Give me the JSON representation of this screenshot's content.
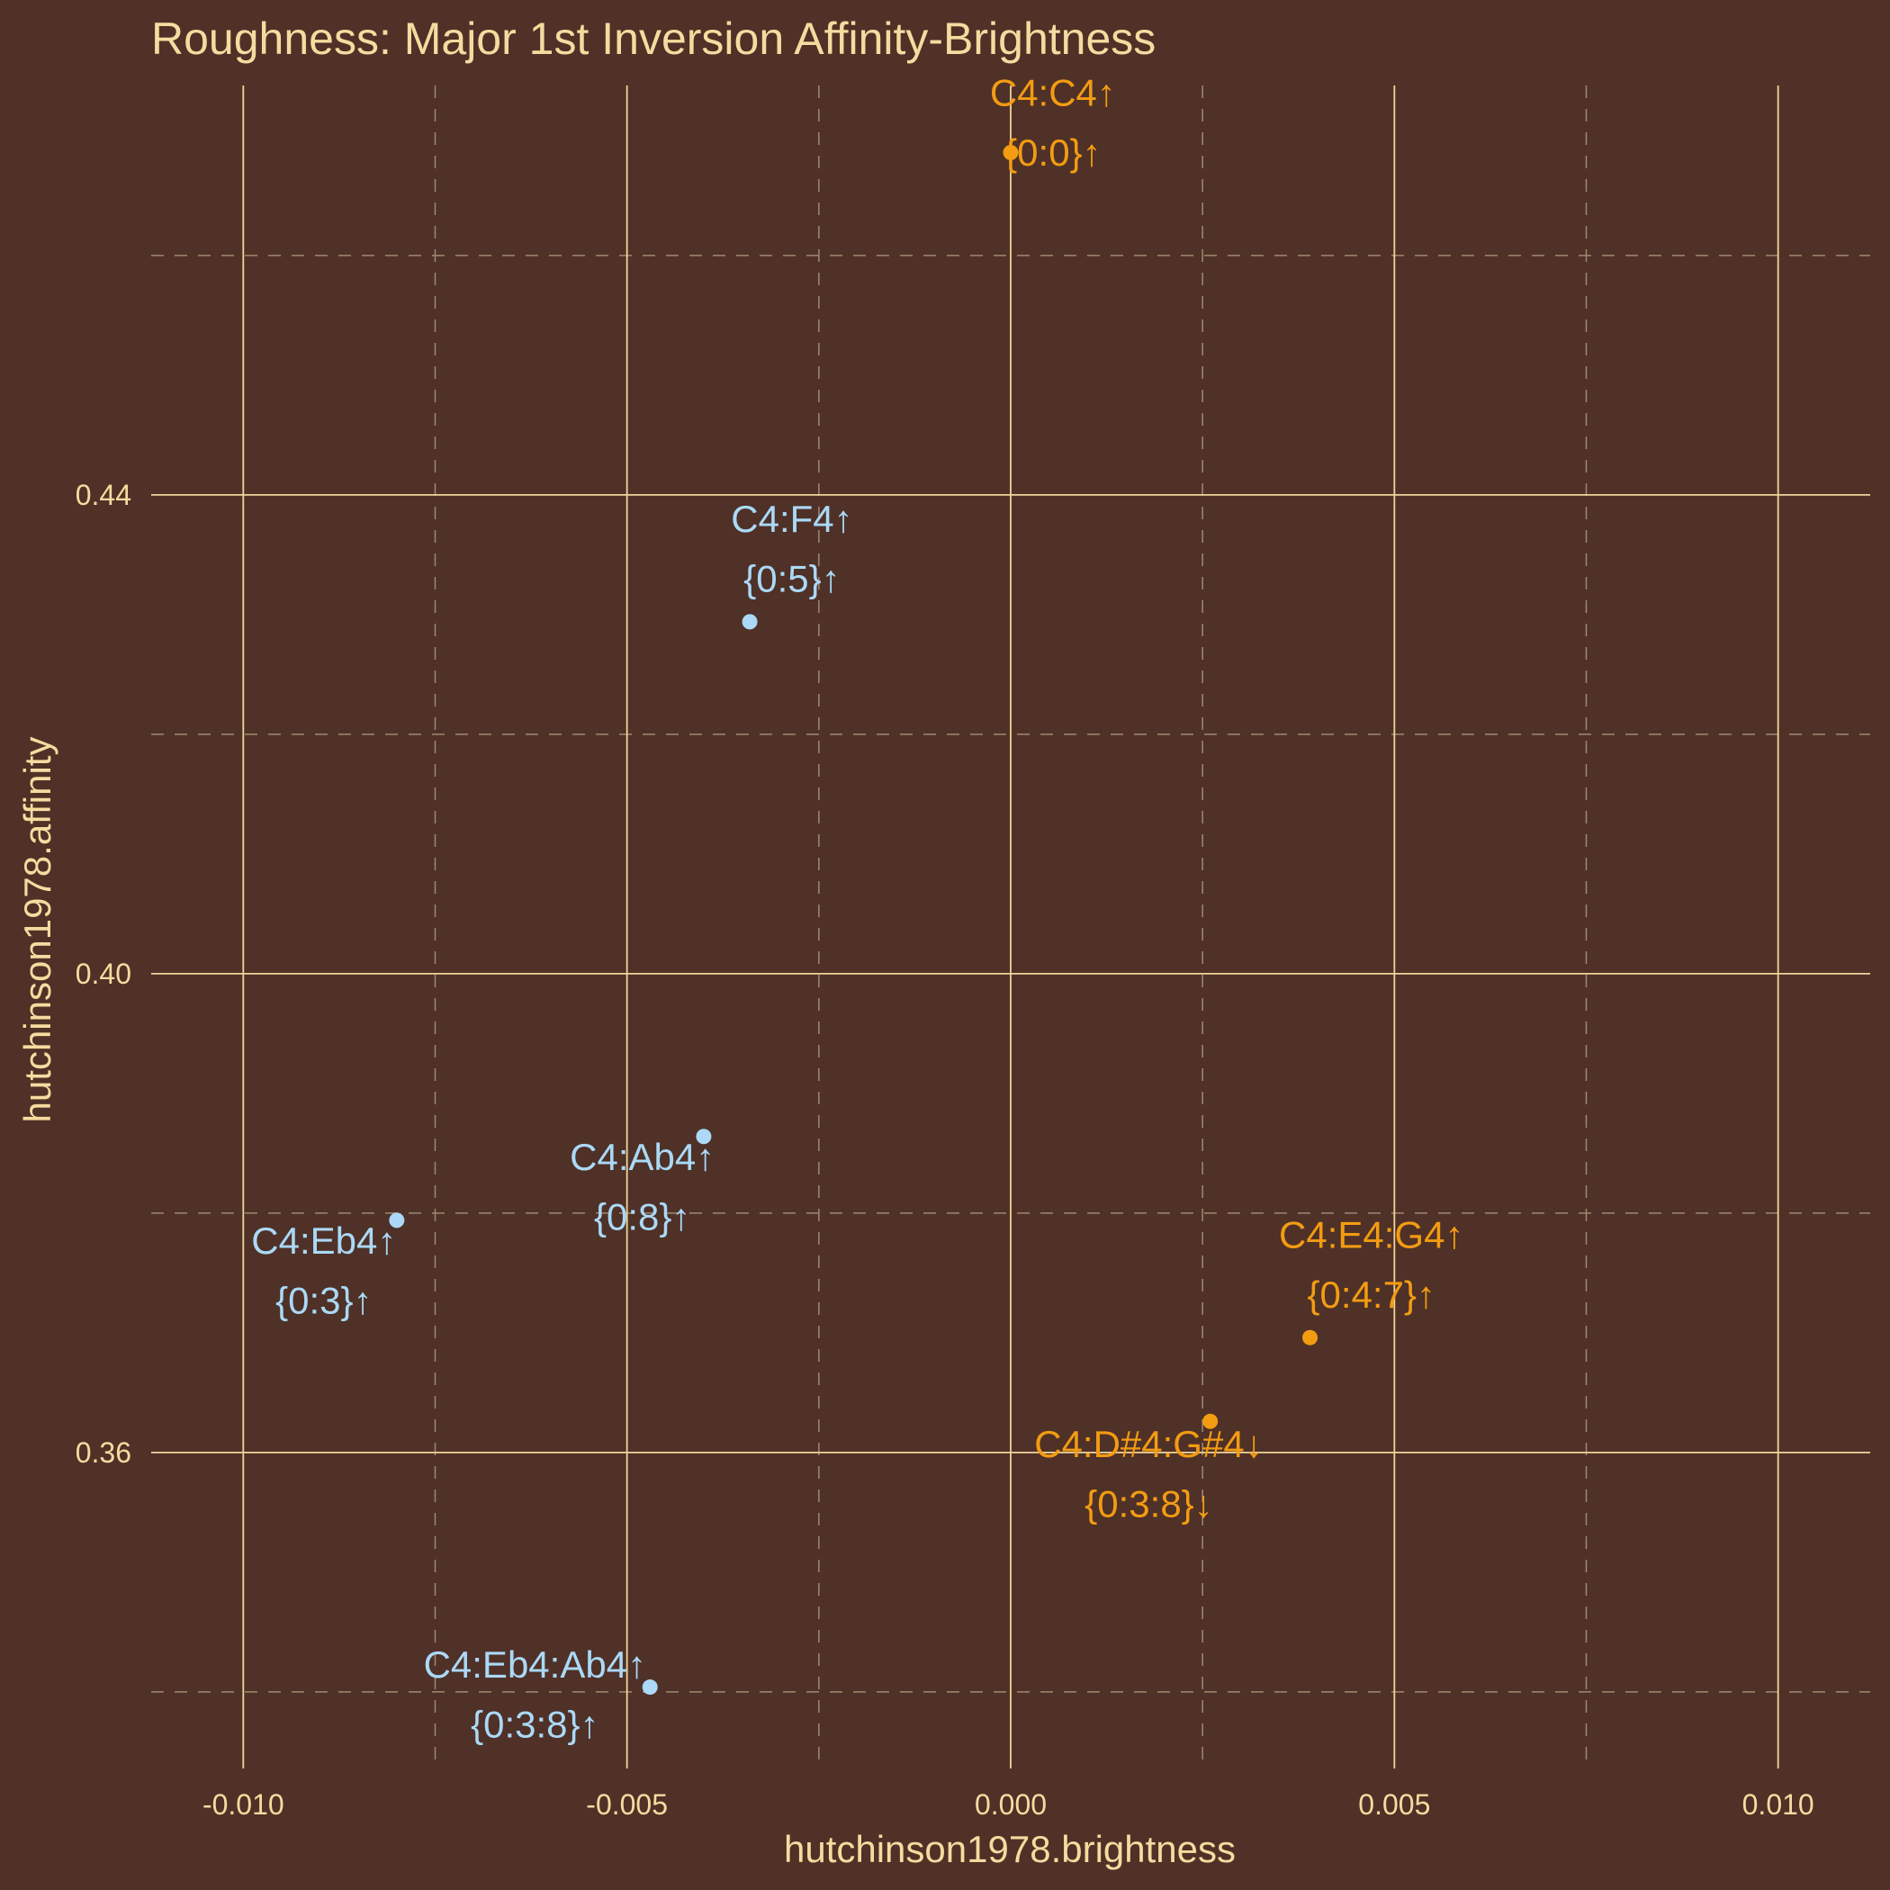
{
  "chart_data": {
    "type": "scatter",
    "title": "Roughness: Major 1st Inversion Affinity-Brightness",
    "xlabel": "hutchinson1978.brightness",
    "ylabel": "hutchinson1978.affinity",
    "xlim": [
      -0.0112,
      0.0112
    ],
    "ylim": [
      0.3336,
      0.4742
    ],
    "x_ticks": [
      -0.01,
      -0.005,
      0.0,
      0.005,
      0.01
    ],
    "x_tick_labels": [
      "-0.010",
      "-0.005",
      "0.000",
      "0.005",
      "0.010"
    ],
    "x_minor": [
      -0.0075,
      -0.0025,
      0.0025,
      0.0075
    ],
    "y_ticks": [
      0.36,
      0.4,
      0.44
    ],
    "y_tick_labels": [
      "0.36",
      "0.40",
      "0.44"
    ],
    "y_minor": [
      0.34,
      0.38,
      0.42,
      0.46
    ],
    "grid": true,
    "points": [
      {
        "x": 0.0,
        "y": 0.4686,
        "line1": "C4:C4↑",
        "line2": "{0:0}↑",
        "color": "#f39c12",
        "label_dx": 0.00055,
        "label_dy1": 0.0039,
        "label_dy2": -0.0011
      },
      {
        "x": -0.0034,
        "y": 0.4294,
        "line1": "C4:F4↑",
        "line2": "{0:5}↑",
        "color": "#abd9f7",
        "label_dx": 0.00055,
        "label_dy1": 0.0075,
        "label_dy2": 0.0025
      },
      {
        "x": -0.004,
        "y": 0.3864,
        "line1": "C4:Ab4↑",
        "line2": "{0:8}↑",
        "color": "#abd9f7",
        "label_dx": -0.0008,
        "label_dy1": -0.0028,
        "label_dy2": -0.0078
      },
      {
        "x": -0.008,
        "y": 0.3794,
        "line1": "C4:Eb4↑",
        "line2": "{0:3}↑",
        "color": "#abd9f7",
        "label_dx": -0.00095,
        "label_dy1": -0.0028,
        "label_dy2": -0.0078
      },
      {
        "x": -0.0047,
        "y": 0.3404,
        "line1": "C4:Eb4:Ab4↑",
        "line2": "{0:3:8}↑",
        "color": "#abd9f7",
        "label_dx": -0.0015,
        "label_dy1": 0.0008,
        "label_dy2": -0.0042
      },
      {
        "x": 0.0039,
        "y": 0.3696,
        "line1": "C4:E4:G4↑",
        "line2": "{0:4:7}↑",
        "color": "#f39c12",
        "label_dx": 0.0008,
        "label_dy1": 0.0075,
        "label_dy2": 0.0025
      },
      {
        "x": 0.0026,
        "y": 0.3626,
        "line1": "C4:D#4:G#4↓",
        "line2": "{0:3:8}↓",
        "color": "#f39c12",
        "label_dx": -0.0008,
        "label_dy1": -0.003,
        "label_dy2": -0.008
      }
    ]
  },
  "colors": {
    "background": "#4f3127",
    "text": "#f6dba0",
    "grid_major": "#f0d59b",
    "grid_minor": "#9e8a70",
    "series_warm": "#f39c12",
    "series_cool": "#abd9f7"
  }
}
